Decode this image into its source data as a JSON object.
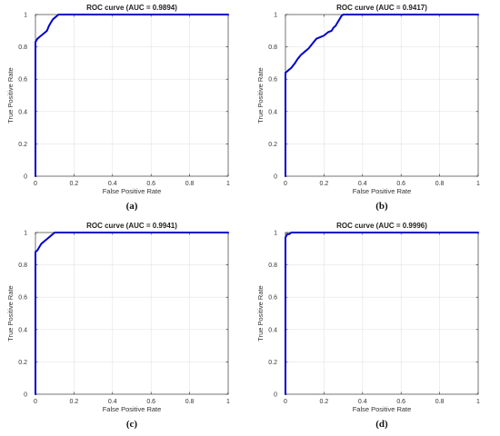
{
  "chart_data": [
    {
      "type": "line",
      "caption": "(a)",
      "title": "ROC curve (AUC = 0.9894)",
      "xlabel": "False Positive Rate",
      "ylabel": "True Positive Rate",
      "xlim": [
        0,
        1
      ],
      "ylim": [
        0,
        1
      ],
      "xticks": [
        "0",
        "0.2",
        "0.4",
        "0.6",
        "0.8",
        "1"
      ],
      "yticks": [
        "0",
        "0.2",
        "0.4",
        "0.6",
        "0.8",
        "1"
      ],
      "grid": true,
      "series": [
        {
          "color": "#0000cc",
          "x": [
            0,
            0,
            0.01,
            0.02,
            0.04,
            0.05,
            0.06,
            0.07,
            0.08,
            0.09,
            0.1,
            0.12,
            0.15,
            1
          ],
          "y": [
            0,
            0.83,
            0.85,
            0.86,
            0.88,
            0.89,
            0.9,
            0.93,
            0.95,
            0.97,
            0.98,
            1,
            1,
            1
          ]
        }
      ]
    },
    {
      "type": "line",
      "caption": "(b)",
      "title": "ROC curve (AUC = 0.9417)",
      "xlabel": "False Positive Rate",
      "ylabel": "True Positive Rate",
      "xlim": [
        0,
        1
      ],
      "ylim": [
        0,
        1
      ],
      "xticks": [
        "0",
        "0.2",
        "0.4",
        "0.6",
        "0.8",
        "1"
      ],
      "yticks": [
        "0",
        "0.2",
        "0.4",
        "0.6",
        "0.8",
        "1"
      ],
      "grid": true,
      "series": [
        {
          "color": "#0000cc",
          "x": [
            0,
            0,
            0.01,
            0.02,
            0.03,
            0.05,
            0.06,
            0.08,
            0.1,
            0.12,
            0.14,
            0.16,
            0.18,
            0.2,
            0.22,
            0.24,
            0.25,
            0.26,
            0.27,
            0.28,
            0.29,
            0.3,
            0.5,
            1
          ],
          "y": [
            0,
            0.64,
            0.65,
            0.66,
            0.67,
            0.7,
            0.72,
            0.75,
            0.77,
            0.79,
            0.82,
            0.85,
            0.86,
            0.87,
            0.89,
            0.9,
            0.92,
            0.93,
            0.95,
            0.97,
            0.99,
            1,
            1,
            1
          ]
        }
      ]
    },
    {
      "type": "line",
      "caption": "(c)",
      "title": "ROC curve (AUC = 0.9941)",
      "xlabel": "False Positive Rate",
      "ylabel": "True Positive Rate",
      "xlim": [
        0,
        1
      ],
      "ylim": [
        0,
        1
      ],
      "xticks": [
        "0",
        "0.2",
        "0.4",
        "0.6",
        "0.8",
        "1"
      ],
      "yticks": [
        "0",
        "0.2",
        "0.4",
        "0.6",
        "0.8",
        "1"
      ],
      "grid": true,
      "series": [
        {
          "color": "#0000cc",
          "x": [
            0,
            0,
            0.01,
            0.02,
            0.03,
            0.04,
            0.05,
            0.06,
            0.07,
            0.08,
            0.09,
            0.1,
            0.3,
            1
          ],
          "y": [
            0,
            0.88,
            0.89,
            0.91,
            0.93,
            0.94,
            0.95,
            0.96,
            0.97,
            0.98,
            0.99,
            1,
            1,
            1
          ]
        }
      ]
    },
    {
      "type": "line",
      "caption": "(d)",
      "title": "ROC curve (AUC = 0.9996)",
      "xlabel": "False Positive Rate",
      "ylabel": "True Positive Rate",
      "xlim": [
        0,
        1
      ],
      "ylim": [
        0,
        1
      ],
      "xticks": [
        "0",
        "0.2",
        "0.4",
        "0.6",
        "0.8",
        "1"
      ],
      "yticks": [
        "0",
        "0.2",
        "0.4",
        "0.6",
        "0.8",
        "1"
      ],
      "grid": true,
      "series": [
        {
          "color": "#0000cc",
          "x": [
            0,
            0,
            0.01,
            0.02,
            0.03,
            1
          ],
          "y": [
            0,
            0.97,
            0.99,
            0.99,
            1,
            1
          ]
        }
      ]
    }
  ]
}
